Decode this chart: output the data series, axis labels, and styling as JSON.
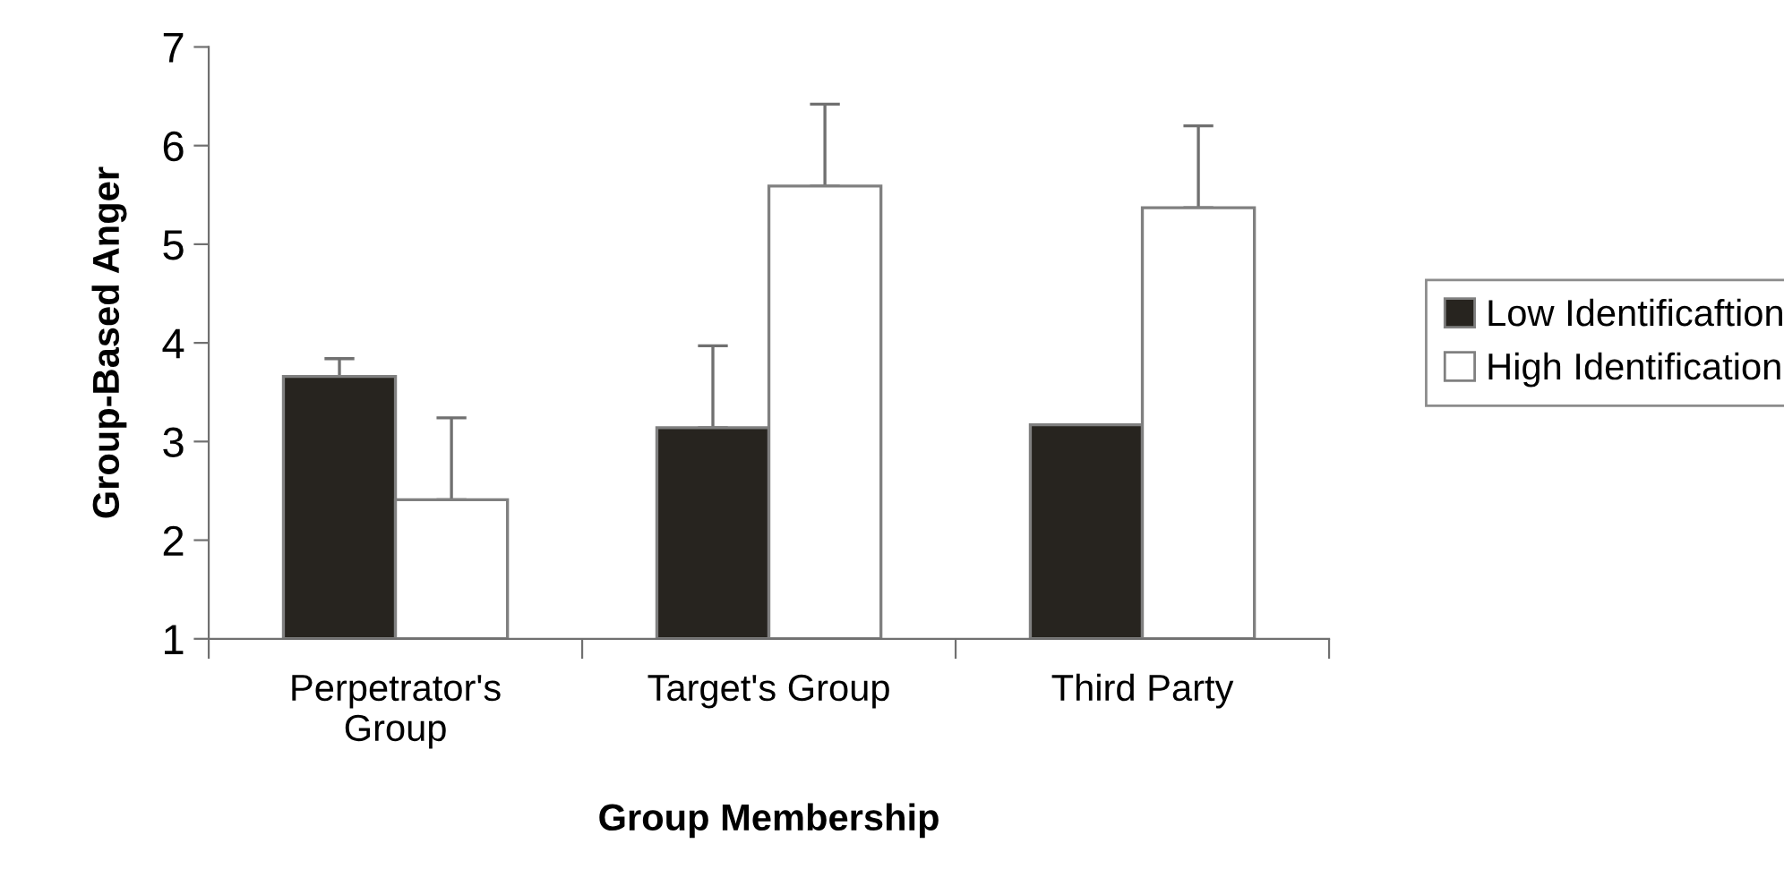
{
  "chart_data": {
    "type": "bar",
    "xlabel": "Group Membership",
    "ylabel": "Group-Based Anger",
    "categories": [
      "Perpetrator's\nGroup",
      "Target's Group",
      "Third Party"
    ],
    "series": [
      {
        "name": "Low Identificaftion",
        "color": "#27241f",
        "values": [
          3.66,
          3.14,
          3.17
        ],
        "errors": [
          [
            3.66,
            3.84
          ],
          [
            3.14,
            3.97
          ],
          null
        ]
      },
      {
        "name": "High Identification",
        "color": "#ffffff",
        "values": [
          2.41,
          5.59,
          5.37
        ],
        "errors": [
          [
            2.41,
            3.24
          ],
          [
            5.59,
            6.42
          ],
          [
            5.37,
            6.2
          ]
        ]
      }
    ],
    "ylim": [
      1,
      7
    ],
    "yticks": [
      1,
      2,
      3,
      4,
      5,
      6,
      7
    ],
    "grid": false,
    "legend": "right"
  }
}
